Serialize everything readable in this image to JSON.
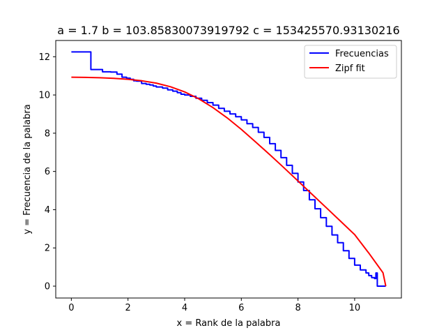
{
  "chart_data": {
    "type": "line",
    "title": "a = 1.7 b = 103.85830073919792 c = 153425570.93130216",
    "xlabel": "x = Rank de la palabra",
    "ylabel": "y = Frecuencia de la palabra",
    "xlim": [
      -0.55,
      11.65
    ],
    "ylim": [
      -0.62,
      12.85
    ],
    "xticks": [
      0,
      2,
      4,
      6,
      8,
      10
    ],
    "yticks": [
      0,
      2,
      4,
      6,
      8,
      10,
      12
    ],
    "xtick_labels": [
      "0",
      "2",
      "4",
      "6",
      "8",
      "10"
    ],
    "ytick_labels": [
      "0",
      "2",
      "4",
      "6",
      "8",
      "10",
      "12"
    ],
    "grid": false,
    "legend_position": "top-right",
    "series": [
      {
        "name": "Frecuencias",
        "color": "#0000ff",
        "style": "step-decreasing",
        "x": [
          0,
          0.69,
          1.1,
          1.39,
          1.61,
          1.79,
          1.95,
          2.08,
          2.2,
          2.3,
          2.48,
          2.64,
          2.77,
          2.89,
          3.0,
          3.22,
          3.4,
          3.58,
          3.74,
          3.87,
          4.0,
          4.2,
          4.4,
          4.6,
          4.8,
          5.0,
          5.2,
          5.4,
          5.6,
          5.8,
          6.0,
          6.2,
          6.4,
          6.6,
          6.8,
          7.0,
          7.2,
          7.4,
          7.6,
          7.8,
          8.0,
          8.2,
          8.4,
          8.6,
          8.8,
          9.0,
          9.2,
          9.4,
          9.6,
          9.8,
          10.0,
          10.2,
          10.4,
          10.5,
          10.6,
          10.7,
          10.75,
          10.8,
          11.1
        ],
        "y": [
          12.25,
          11.33,
          11.21,
          11.2,
          11.09,
          10.93,
          10.88,
          10.82,
          10.74,
          10.72,
          10.6,
          10.56,
          10.52,
          10.47,
          10.42,
          10.36,
          10.27,
          10.2,
          10.12,
          10.04,
          10.0,
          9.93,
          9.83,
          9.72,
          9.6,
          9.47,
          9.3,
          9.15,
          9.01,
          8.86,
          8.7,
          8.5,
          8.3,
          8.05,
          7.78,
          7.45,
          7.1,
          6.72,
          6.32,
          5.9,
          5.45,
          5.0,
          4.52,
          4.05,
          3.58,
          3.13,
          2.68,
          2.27,
          1.85,
          1.45,
          1.1,
          0.85,
          0.69,
          0.55,
          0.45,
          0.4,
          0.69,
          0.0,
          0.0
        ]
      },
      {
        "name": "Zipf fit",
        "color": "#ff0000",
        "style": "line",
        "x": [
          0,
          0.5,
          1.0,
          1.5,
          2.0,
          2.5,
          3.0,
          3.5,
          4.0,
          4.5,
          5.0,
          5.5,
          6.0,
          6.5,
          7.0,
          7.5,
          8.0,
          8.5,
          9.0,
          9.5,
          10.0,
          10.5,
          11.0,
          11.1
        ],
        "y": [
          10.93,
          10.92,
          10.9,
          10.87,
          10.82,
          10.74,
          10.62,
          10.43,
          10.16,
          9.8,
          9.34,
          8.8,
          8.2,
          7.55,
          6.88,
          6.2,
          5.5,
          4.8,
          4.1,
          3.4,
          2.7,
          1.73,
          0.7,
          0.0
        ]
      }
    ]
  }
}
